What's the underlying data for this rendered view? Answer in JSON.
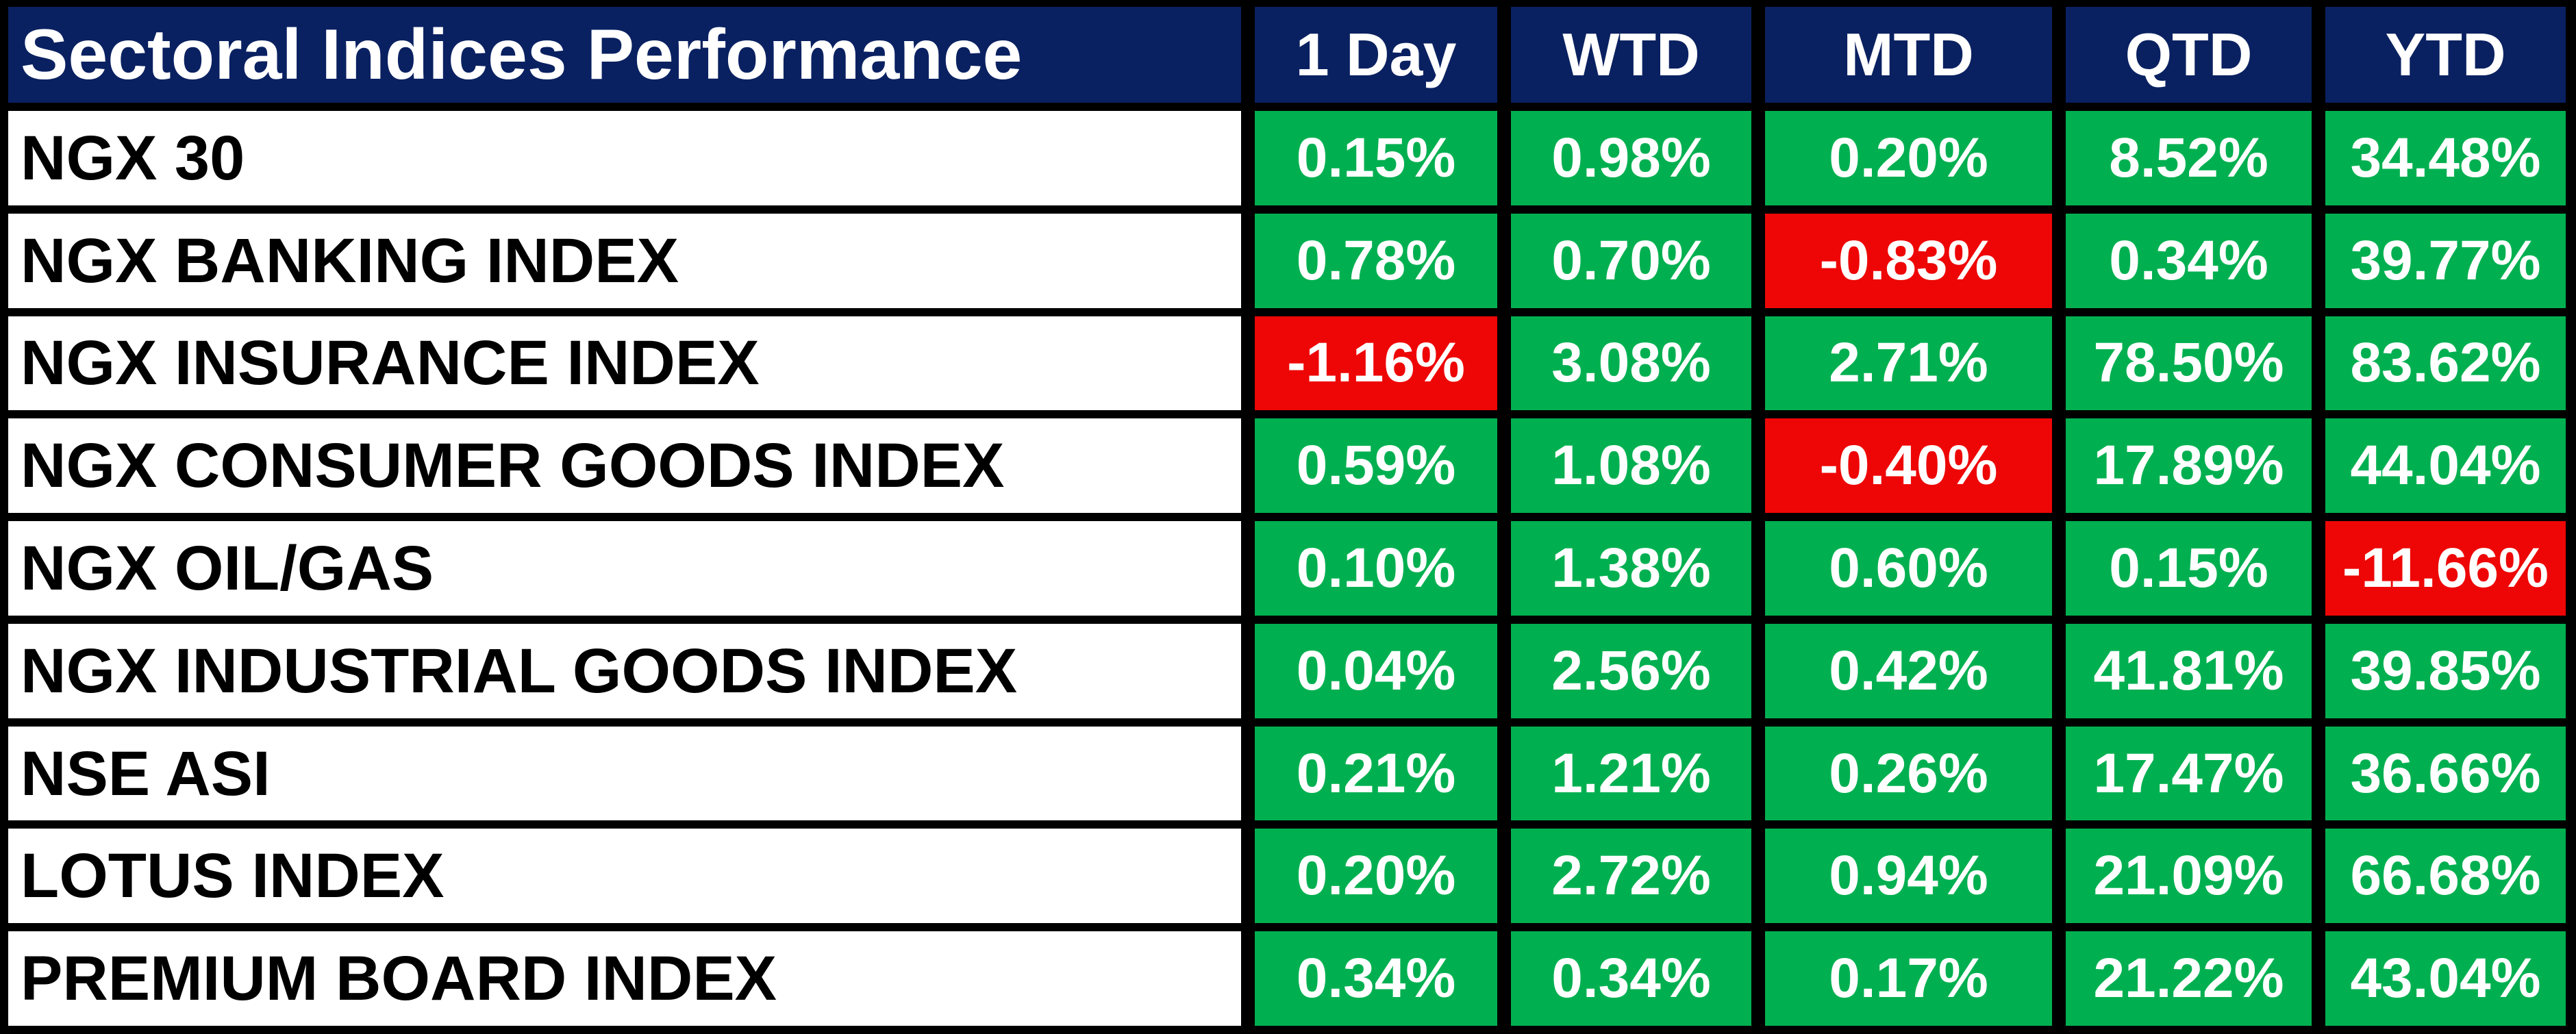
{
  "chart_data": {
    "type": "table",
    "title": "Sectoral Indices Performance",
    "columns": [
      "1 Day",
      "WTD",
      "MTD",
      "QTD",
      "YTD"
    ],
    "rows": [
      {
        "label": "NGX 30",
        "values": [
          "0.15%",
          "0.98%",
          "0.20%",
          "8.52%",
          "34.48%"
        ]
      },
      {
        "label": "NGX BANKING INDEX",
        "values": [
          "0.78%",
          "0.70%",
          "-0.83%",
          "0.34%",
          "39.77%"
        ]
      },
      {
        "label": "NGX INSURANCE INDEX",
        "values": [
          "-1.16%",
          "3.08%",
          "2.71%",
          "78.50%",
          "83.62%"
        ]
      },
      {
        "label": "NGX CONSUMER GOODS INDEX",
        "values": [
          "0.59%",
          "1.08%",
          "-0.40%",
          "17.89%",
          "44.04%"
        ]
      },
      {
        "label": "NGX OIL/GAS",
        "values": [
          "0.10%",
          "1.38%",
          "0.60%",
          "0.15%",
          "-11.66%"
        ]
      },
      {
        "label": "NGX INDUSTRIAL GOODS INDEX",
        "values": [
          "0.04%",
          "2.56%",
          "0.42%",
          "41.81%",
          "39.85%"
        ]
      },
      {
        "label": "NSE ASI",
        "values": [
          "0.21%",
          "1.21%",
          "0.26%",
          "17.47%",
          "36.66%"
        ]
      },
      {
        "label": "LOTUS INDEX",
        "values": [
          "0.20%",
          "2.72%",
          "0.94%",
          "21.09%",
          "66.68%"
        ]
      },
      {
        "label": "PREMIUM BOARD INDEX",
        "values": [
          "0.34%",
          "0.34%",
          "0.17%",
          "21.22%",
          "43.04%"
        ]
      }
    ],
    "legend_position": "none",
    "grid": "thick black gridlines between all cells",
    "color_coding": "green cell = positive value, red cell = negative value"
  },
  "colors": {
    "header_bg": "#0a2161",
    "header_text": "#ffffff",
    "positive_bg": "#00b050",
    "negative_bg": "#ee0606",
    "value_text": "#ffffff",
    "label_bg": "#ffffff",
    "label_text": "#000000",
    "grid_bg": "#000000"
  }
}
